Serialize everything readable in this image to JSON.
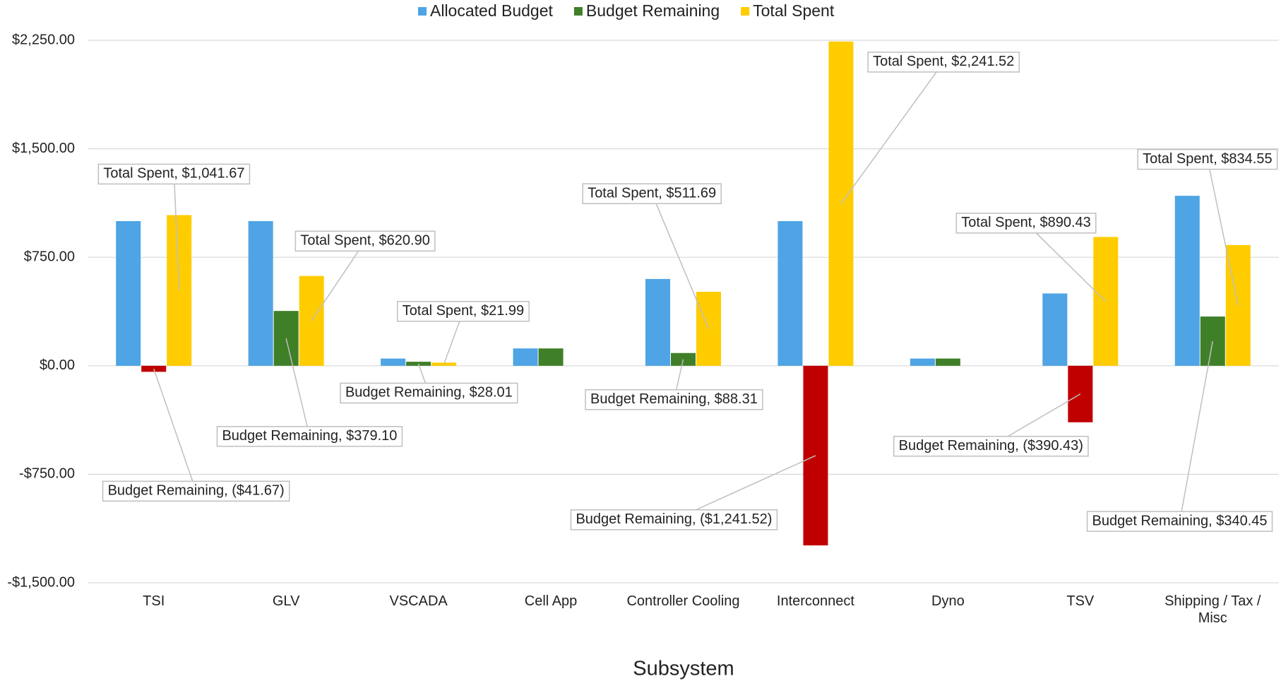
{
  "chart_data": {
    "type": "bar",
    "x_label": "Subsystem",
    "categories": [
      "TSI",
      "GLV",
      "VSCADA",
      "Cell App",
      "Controller Cooling",
      "Interconnect",
      "Dyno",
      "TSV",
      "Shipping / Tax / Misc"
    ],
    "series": [
      {
        "name": "Allocated Budget",
        "color": "#4ea4e4",
        "values": [
          1000,
          1000,
          50,
          120,
          600,
          1000,
          50,
          500,
          1175
        ]
      },
      {
        "name": "Budget Remaining",
        "color": "#3f7f28",
        "negative_color": "#c00000",
        "negative_label_color": "#c00000",
        "values": [
          -41.67,
          379.1,
          28.01,
          120,
          88.31,
          -1241.52,
          50,
          -390.43,
          340.45
        ],
        "value_labels": [
          "Budget Remaining, ($41.67)",
          "Budget Remaining, $379.10",
          "Budget Remaining, $28.01",
          null,
          "Budget Remaining, $88.31",
          "Budget Remaining, ($1,241.52)",
          null,
          "Budget Remaining, ($390.43)",
          "Budget Remaining, $340.45"
        ]
      },
      {
        "name": "Total Spent",
        "color": "#ffcc00",
        "values": [
          1041.67,
          620.9,
          21.99,
          0,
          511.69,
          2241.52,
          0,
          890.43,
          834.55
        ],
        "value_labels": [
          "Total Spent, $1,041.67",
          "Total Spent, $620.90",
          "Total Spent, $21.99",
          null,
          "Total Spent, $511.69",
          "Total Spent, $2,241.52",
          null,
          "Total Spent, $890.43",
          "Total Spent, $834.55"
        ]
      }
    ],
    "ylim": [
      -1500,
      2250
    ],
    "yticks": [
      {
        "value": -1500,
        "label": "-$1,500.00"
      },
      {
        "value": -750,
        "label": "-$750.00"
      },
      {
        "value": 0,
        "label": "$0.00"
      },
      {
        "value": 750,
        "label": "$750.00"
      },
      {
        "value": 1500,
        "label": "$1,500.00"
      },
      {
        "value": 2250,
        "label": "$2,250.00"
      }
    ],
    "grid": true,
    "legend": "top"
  }
}
